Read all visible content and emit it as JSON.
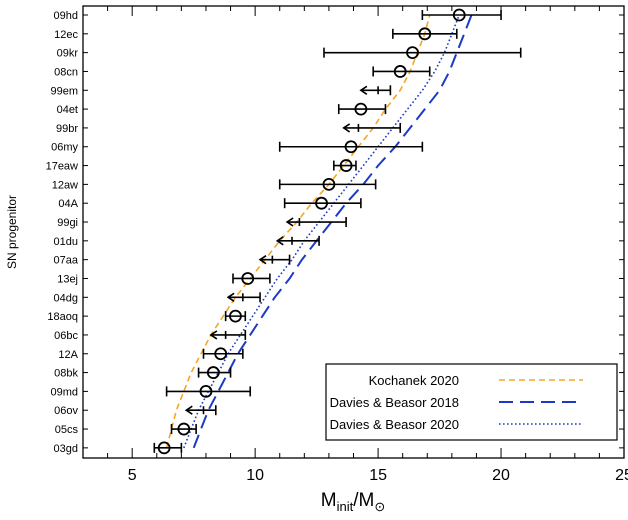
{
  "chart_data": {
    "type": "scatter",
    "title": "",
    "xlabel_main": "M",
    "xlabel_sub1": "init",
    "xlabel_slash": "/M",
    "xlabel_sub2": "⊙",
    "ylabel": "SN progenitor",
    "xlim": [
      3,
      25
    ],
    "xticks": [
      5,
      10,
      15,
      20,
      25
    ],
    "xtick_labels": [
      "5",
      "10",
      "15",
      "20",
      "25"
    ],
    "categories": [
      "09hd",
      "12ec",
      "09kr",
      "08cn",
      "99em",
      "04et",
      "99br",
      "06my",
      "17eaw",
      "12aw",
      "04A",
      "99gi",
      "01du",
      "07aa",
      "13ej",
      "04dg",
      "18aoq",
      "06bc",
      "12A",
      "08bk",
      "09md",
      "06ov",
      "05cs",
      "03gd"
    ],
    "measurements": [
      {
        "name": "09hd",
        "value": 18.3,
        "err_low": 16.8,
        "err_high": 20.0,
        "limit": false
      },
      {
        "name": "12ec",
        "value": 16.9,
        "err_low": 15.6,
        "err_high": 18.2,
        "limit": false
      },
      {
        "name": "09kr",
        "value": 16.4,
        "err_low": 12.8,
        "err_high": 20.8,
        "limit": false
      },
      {
        "name": "08cn",
        "value": 15.9,
        "err_low": 14.8,
        "err_high": 17.1,
        "limit": false
      },
      {
        "name": "99em",
        "value": 15.0,
        "err_low": 14.3,
        "err_high": 15.5,
        "limit": true
      },
      {
        "name": "04et",
        "value": 14.3,
        "err_low": 13.4,
        "err_high": 15.3,
        "limit": false
      },
      {
        "name": "99br",
        "value": 14.2,
        "err_low": 13.6,
        "err_high": 15.9,
        "limit": true
      },
      {
        "name": "06my",
        "value": 13.9,
        "err_low": 11.0,
        "err_high": 16.8,
        "limit": false
      },
      {
        "name": "17eaw",
        "value": 13.7,
        "err_low": 13.2,
        "err_high": 14.1,
        "limit": false
      },
      {
        "name": "12aw",
        "value": 13.0,
        "err_low": 11.0,
        "err_high": 14.9,
        "limit": false
      },
      {
        "name": "04A",
        "value": 12.7,
        "err_low": 11.2,
        "err_high": 14.3,
        "limit": false
      },
      {
        "name": "99gi",
        "value": 11.8,
        "err_low": 11.3,
        "err_high": 13.7,
        "limit": true
      },
      {
        "name": "01du",
        "value": 11.5,
        "err_low": 10.9,
        "err_high": 12.6,
        "limit": true
      },
      {
        "name": "07aa",
        "value": 10.7,
        "err_low": 10.2,
        "err_high": 11.4,
        "limit": true
      },
      {
        "name": "13ej",
        "value": 9.7,
        "err_low": 9.1,
        "err_high": 10.6,
        "limit": false
      },
      {
        "name": "04dg",
        "value": 9.5,
        "err_low": 8.9,
        "err_high": 10.2,
        "limit": true
      },
      {
        "name": "18aoq",
        "value": 9.2,
        "err_low": 8.8,
        "err_high": 9.6,
        "limit": false
      },
      {
        "name": "06bc",
        "value": 8.8,
        "err_low": 8.2,
        "err_high": 9.6,
        "limit": true
      },
      {
        "name": "12A",
        "value": 8.6,
        "err_low": 7.9,
        "err_high": 9.5,
        "limit": false
      },
      {
        "name": "08bk",
        "value": 8.3,
        "err_low": 7.7,
        "err_high": 9.0,
        "limit": false
      },
      {
        "name": "09md",
        "value": 8.0,
        "err_low": 6.4,
        "err_high": 9.8,
        "limit": false
      },
      {
        "name": "06ov",
        "value": 7.9,
        "err_low": 7.2,
        "err_high": 8.4,
        "limit": true
      },
      {
        "name": "05cs",
        "value": 7.1,
        "err_low": 6.6,
        "err_high": 7.6,
        "limit": false
      },
      {
        "name": "03gd",
        "value": 6.3,
        "err_low": 5.9,
        "err_high": 7.0,
        "limit": false
      }
    ],
    "curves": [
      {
        "name": "Kochanek 2020",
        "color": "#f5a623",
        "style": "short-dash",
        "points": [
          [
            6.4,
            23
          ],
          [
            6.6,
            22
          ],
          [
            6.8,
            21
          ],
          [
            7.1,
            20
          ],
          [
            7.4,
            19
          ],
          [
            7.8,
            18
          ],
          [
            8.2,
            17
          ],
          [
            8.7,
            16
          ],
          [
            9.2,
            15
          ],
          [
            9.8,
            14
          ],
          [
            10.4,
            13
          ],
          [
            11.0,
            12
          ],
          [
            11.7,
            11
          ],
          [
            12.3,
            10
          ],
          [
            13.0,
            9
          ],
          [
            13.6,
            8
          ],
          [
            14.2,
            7
          ],
          [
            14.8,
            6
          ],
          [
            15.3,
            5
          ],
          [
            15.9,
            4
          ],
          [
            16.3,
            3
          ],
          [
            16.6,
            2
          ],
          [
            16.9,
            1
          ],
          [
            17.1,
            0
          ]
        ]
      },
      {
        "name": "Davies & Beasor 2018",
        "color": "#1c39c8",
        "style": "long-dash",
        "points": [
          [
            7.5,
            23
          ],
          [
            7.8,
            22
          ],
          [
            8.1,
            21
          ],
          [
            8.5,
            20
          ],
          [
            8.9,
            19
          ],
          [
            9.3,
            18
          ],
          [
            9.8,
            17
          ],
          [
            10.3,
            16
          ],
          [
            10.8,
            15
          ],
          [
            11.4,
            14
          ],
          [
            11.9,
            13
          ],
          [
            12.5,
            12
          ],
          [
            13.1,
            11
          ],
          [
            13.7,
            10
          ],
          [
            14.4,
            9
          ],
          [
            15.0,
            8
          ],
          [
            15.7,
            7
          ],
          [
            16.3,
            6
          ],
          [
            16.9,
            5
          ],
          [
            17.5,
            4
          ],
          [
            17.9,
            3
          ],
          [
            18.2,
            2
          ],
          [
            18.5,
            1
          ],
          [
            18.8,
            0
          ]
        ]
      },
      {
        "name": "Davies & Beasor 2020",
        "color": "#1c39c8",
        "style": "dotted",
        "points": [
          [
            7.1,
            23
          ],
          [
            7.4,
            22
          ],
          [
            7.7,
            21
          ],
          [
            8.1,
            20
          ],
          [
            8.5,
            19
          ],
          [
            8.9,
            18
          ],
          [
            9.4,
            17
          ],
          [
            9.9,
            16
          ],
          [
            10.4,
            15
          ],
          [
            10.9,
            14
          ],
          [
            11.5,
            13
          ],
          [
            12.0,
            12
          ],
          [
            12.6,
            11
          ],
          [
            13.2,
            10
          ],
          [
            13.8,
            9
          ],
          [
            14.4,
            8
          ],
          [
            15.0,
            7
          ],
          [
            15.6,
            6
          ],
          [
            16.2,
            5
          ],
          [
            16.8,
            4
          ],
          [
            17.3,
            3
          ],
          [
            17.7,
            2
          ],
          [
            18.0,
            1
          ],
          [
            18.3,
            0
          ]
        ]
      }
    ],
    "legend_position": "bottom-right"
  }
}
